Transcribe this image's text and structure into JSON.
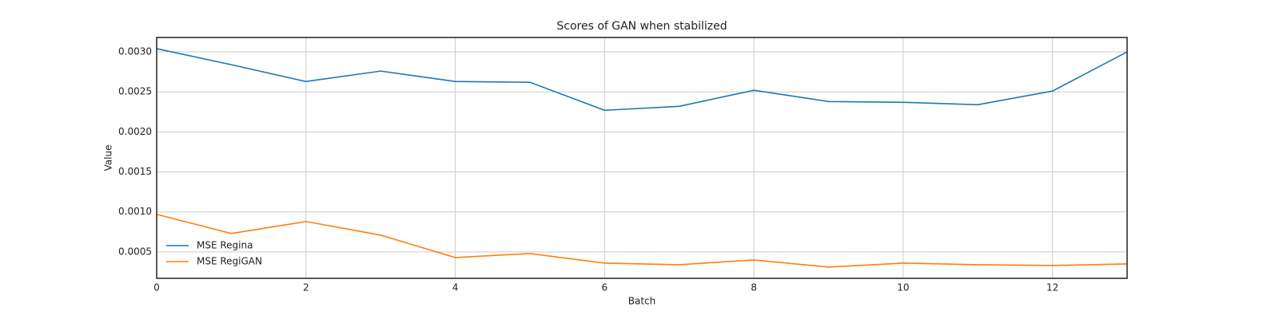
{
  "chart_data": {
    "type": "line",
    "title": "Scores of GAN when stabilized",
    "x_label": "Batch",
    "y_label": "Value",
    "x": [
      0,
      1,
      2,
      3,
      4,
      5,
      6,
      7,
      8,
      9,
      10,
      11,
      12,
      13
    ],
    "series": [
      {
        "name": "MSE Regina",
        "color": "#1f77b4",
        "values": [
          0.00304,
          0.00284,
          0.00263,
          0.00276,
          0.00263,
          0.00262,
          0.00227,
          0.00232,
          0.00252,
          0.00238,
          0.00237,
          0.00234,
          0.00251,
          0.003
        ]
      },
      {
        "name": "MSE RegiGAN",
        "color": "#ff7f0e",
        "values": [
          0.00097,
          0.00073,
          0.00088,
          0.00071,
          0.00043,
          0.00048,
          0.00036,
          0.00034,
          0.0004,
          0.00031,
          0.00036,
          0.00034,
          0.00033,
          0.00035
        ]
      }
    ],
    "xlim": [
      0,
      13
    ],
    "xticks": [
      0,
      2,
      4,
      6,
      8,
      10,
      12
    ],
    "ylim": [
      0.00017,
      0.00318
    ],
    "yticks": [
      0.0005,
      {
        "value": 0.001,
        "label": "0.0010"
      },
      0.0015,
      {
        "value": 0.002,
        "label": "0.0020"
      },
      0.0025,
      {
        "value": 0.003,
        "label": "0.0030"
      }
    ],
    "grid": true,
    "legend": "lower left"
  }
}
